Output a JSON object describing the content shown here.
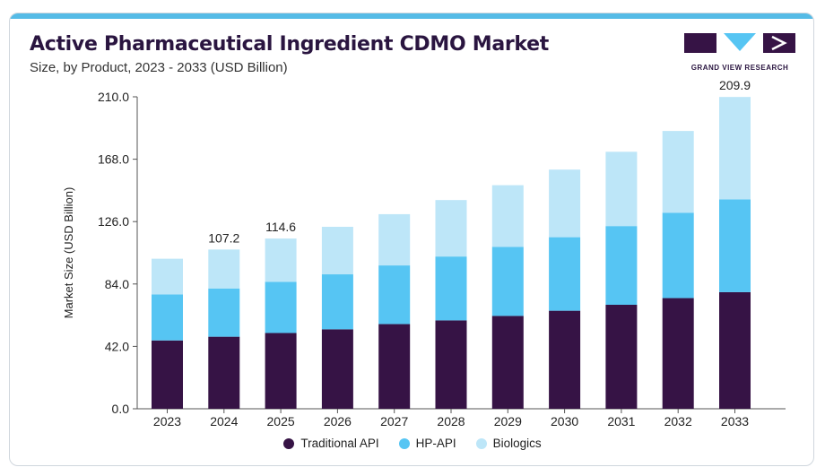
{
  "title": "Active Pharmaceutical Ingredient CDMO Market",
  "subtitle": "Size, by Product, 2023 - 2033 (USD Billion)",
  "brand": "GRAND VIEW RESEARCH",
  "colors": {
    "accent": "#55bbe6",
    "traditional": "#361345",
    "hpapi": "#56c5f3",
    "biologics": "#bde6f8"
  },
  "chart_data": {
    "type": "bar",
    "stacked": true,
    "categories": [
      "2023",
      "2024",
      "2025",
      "2026",
      "2027",
      "2028",
      "2029",
      "2030",
      "2031",
      "2032",
      "2033"
    ],
    "series": [
      {
        "name": "Traditional API",
        "color": "#361345",
        "values": [
          46,
          48.5,
          51,
          53.5,
          57,
          59.5,
          62.5,
          66,
          70,
          74.5,
          78.5
        ]
      },
      {
        "name": "HP-API",
        "color": "#56c5f3",
        "values": [
          31,
          32.5,
          34.5,
          37,
          39.5,
          43,
          46.5,
          49.5,
          53,
          57.5,
          62.5
        ]
      },
      {
        "name": "Biologics",
        "color": "#bde6f8",
        "values": [
          24,
          26.2,
          29.1,
          32,
          34.5,
          38,
          41.5,
          45.5,
          50,
          55,
          68.9
        ]
      }
    ],
    "data_labels": [
      {
        "category": "2024",
        "label": "107.2",
        "value": 107.2
      },
      {
        "category": "2025",
        "label": "114.6",
        "value": 114.6
      },
      {
        "category": "2033",
        "label": "209.9",
        "value": 209.9
      }
    ],
    "ylabel": "Market Size (USD Billion)",
    "xlabel": "",
    "ylim": [
      0,
      210
    ],
    "yticks": [
      "0.0",
      "42.0",
      "84.0",
      "126.0",
      "168.0",
      "210.0"
    ],
    "ytick_values": [
      0,
      42,
      84,
      126,
      168,
      210
    ],
    "grid": false,
    "legend": "bottom"
  }
}
